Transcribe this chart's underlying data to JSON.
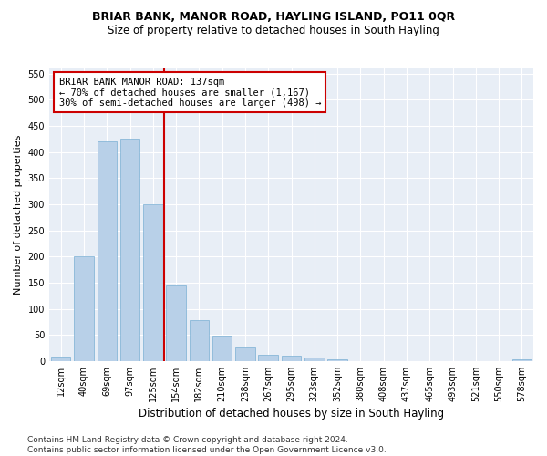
{
  "title": "BRIAR BANK, MANOR ROAD, HAYLING ISLAND, PO11 0QR",
  "subtitle": "Size of property relative to detached houses in South Hayling",
  "xlabel": "Distribution of detached houses by size in South Hayling",
  "ylabel": "Number of detached properties",
  "bar_values": [
    8,
    200,
    420,
    425,
    300,
    145,
    78,
    48,
    25,
    12,
    10,
    6,
    4,
    0,
    0,
    0,
    0,
    0,
    0,
    0,
    3
  ],
  "categories": [
    "12sqm",
    "40sqm",
    "69sqm",
    "97sqm",
    "125sqm",
    "154sqm",
    "182sqm",
    "210sqm",
    "238sqm",
    "267sqm",
    "295sqm",
    "323sqm",
    "352sqm",
    "380sqm",
    "408sqm",
    "437sqm",
    "465sqm",
    "493sqm",
    "521sqm",
    "550sqm",
    "578sqm"
  ],
  "bar_color": "#b8d0e8",
  "bar_edge_color": "#7aafd4",
  "vline_x": 4.5,
  "vline_color": "#cc0000",
  "annotation_text": "BRIAR BANK MANOR ROAD: 137sqm\n← 70% of detached houses are smaller (1,167)\n30% of semi-detached houses are larger (498) →",
  "annotation_box_color": "#ffffff",
  "annotation_box_edge": "#cc0000",
  "ylim": [
    0,
    560
  ],
  "yticks": [
    0,
    50,
    100,
    150,
    200,
    250,
    300,
    350,
    400,
    450,
    500,
    550
  ],
  "bg_color": "#e8eef6",
  "footer": "Contains HM Land Registry data © Crown copyright and database right 2024.\nContains public sector information licensed under the Open Government Licence v3.0.",
  "title_fontsize": 9,
  "subtitle_fontsize": 8.5,
  "xlabel_fontsize": 8.5,
  "ylabel_fontsize": 8,
  "tick_fontsize": 7,
  "footer_fontsize": 6.5
}
